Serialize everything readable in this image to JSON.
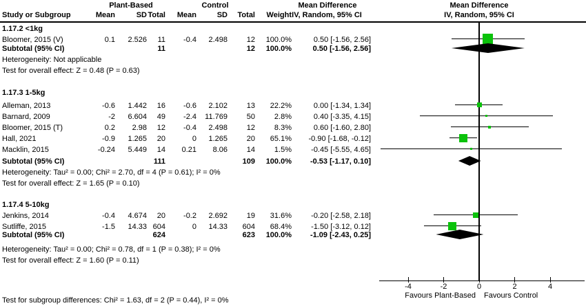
{
  "chart_data": {
    "type": "forest",
    "header": {
      "treatment_label": "Plant-Based",
      "control_label": "Control",
      "md_line1": "Mean Difference",
      "md_line2": "IV, Random, 95% CI"
    },
    "columns": {
      "study": "Study or Subgroup",
      "mean": "Mean",
      "sd": "SD",
      "total": "Total",
      "weight": "Weight"
    },
    "groups": [
      {
        "label": "1.17.2 <1kg",
        "studies": [
          {
            "name": "Bloomer, 2015 (V)",
            "mean1": "0.1",
            "sd1": "2.526",
            "total1": "11",
            "mean2": "-0.4",
            "sd2": "2.498",
            "total2": "12",
            "weight": "100.0%",
            "md_text": "0.50 [-1.56, 2.56]",
            "estimate": 0.5,
            "ci_low": -1.56,
            "ci_high": 2.56
          }
        ],
        "subtotal": {
          "label": "Subtotal (95% CI)",
          "total1": "11",
          "total2": "12",
          "weight": "100.0%",
          "md_text": "0.50 [-1.56, 2.56]",
          "estimate": 0.5,
          "ci_low": -1.56,
          "ci_high": 2.56
        },
        "heterogeneity": "Heterogeneity: Not applicable",
        "overall_effect": "Test for overall effect: Z = 0.48 (P = 0.63)"
      },
      {
        "label": "1.17.3 1-5kg",
        "studies": [
          {
            "name": "Alleman, 2013",
            "mean1": "-0.6",
            "sd1": "1.442",
            "total1": "16",
            "mean2": "-0.6",
            "sd2": "2.102",
            "total2": "13",
            "weight": "22.2%",
            "md_text": "0.00 [-1.34, 1.34]",
            "estimate": 0,
            "ci_low": -1.34,
            "ci_high": 1.34
          },
          {
            "name": "Barnard, 2009",
            "mean1": "-2",
            "sd1": "6.604",
            "total1": "49",
            "mean2": "-2.4",
            "sd2": "11.769",
            "total2": "50",
            "weight": "2.8%",
            "md_text": "0.40 [-3.35, 4.15]",
            "estimate": 0.4,
            "ci_low": -3.35,
            "ci_high": 4.15
          },
          {
            "name": "Bloomer, 2015 (T)",
            "mean1": "0.2",
            "sd1": "2.98",
            "total1": "12",
            "mean2": "-0.4",
            "sd2": "2.498",
            "total2": "12",
            "weight": "8.3%",
            "md_text": "0.60 [-1.60, 2.80]",
            "estimate": 0.6,
            "ci_low": -1.6,
            "ci_high": 2.8
          },
          {
            "name": "Hall, 2021",
            "mean1": "-0.9",
            "sd1": "1.265",
            "total1": "20",
            "mean2": "0",
            "sd2": "1.265",
            "total2": "20",
            "weight": "65.1%",
            "md_text": "-0.90 [-1.68, -0.12]",
            "estimate": -0.9,
            "ci_low": -1.68,
            "ci_high": -0.12
          },
          {
            "name": "Macklin, 2015",
            "mean1": "-0.24",
            "sd1": "5.449",
            "total1": "14",
            "mean2": "0.21",
            "sd2": "8.06",
            "total2": "14",
            "weight": "1.5%",
            "md_text": "-0.45 [-5.55, 4.65]",
            "estimate": -0.45,
            "ci_low": -5.55,
            "ci_high": 4.65
          }
        ],
        "subtotal": {
          "label": "Subtotal (95% CI)",
          "total1": "111",
          "total2": "109",
          "weight": "100.0%",
          "md_text": "-0.53 [-1.17, 0.10]",
          "estimate": -0.53,
          "ci_low": -1.17,
          "ci_high": 0.1
        },
        "heterogeneity": "Heterogeneity: Tau² = 0.00; Chi² = 2.70, df = 4 (P = 0.61); I² = 0%",
        "overall_effect": "Test for overall effect: Z = 1.65 (P = 0.10)"
      },
      {
        "label": "1.17.4 5-10kg",
        "studies": [
          {
            "name": "Jenkins, 2014",
            "mean1": "-0.4",
            "sd1": "4.674",
            "total1": "20",
            "mean2": "-0.2",
            "sd2": "2.692",
            "total2": "19",
            "weight": "31.6%",
            "md_text": "-0.20 [-2.58, 2.18]",
            "estimate": -0.2,
            "ci_low": -2.58,
            "ci_high": 2.18
          },
          {
            "name": "Sutliffe, 2015",
            "mean1": "-1.5",
            "sd1": "14.33",
            "total1": "604",
            "mean2": "0",
            "sd2": "14.33",
            "total2": "604",
            "weight": "68.4%",
            "md_text": "-1.50 [-3.12, 0.12]",
            "estimate": -1.5,
            "ci_low": -3.12,
            "ci_high": 0.12
          }
        ],
        "subtotal": {
          "label": "Subtotal (95% CI)",
          "total1": "624",
          "total2": "623",
          "weight": "100.0%",
          "md_text": "-1.09 [-2.43, 0.25]",
          "estimate": -1.09,
          "ci_low": -2.43,
          "ci_high": 0.25
        },
        "heterogeneity": "Heterogeneity: Tau² = 0.00; Chi² = 0.78, df = 1 (P = 0.38); I² = 0%",
        "overall_effect": "Test for overall effect: Z = 1.60 (P = 0.11)"
      }
    ],
    "axis": {
      "ticks": [
        -4,
        -2,
        0,
        2,
        4
      ],
      "xlim": [
        -5.6,
        5.9
      ],
      "favours_left": "Favours Plant-Based",
      "favours_right": "Favours Control"
    },
    "footer": "Test for subgroup differences: Chi² = 1.63, df = 2 (P = 0.44), I² = 0%",
    "colors": {
      "square": "#0BC20B",
      "diamond": "#000000",
      "line": "#000000"
    }
  }
}
